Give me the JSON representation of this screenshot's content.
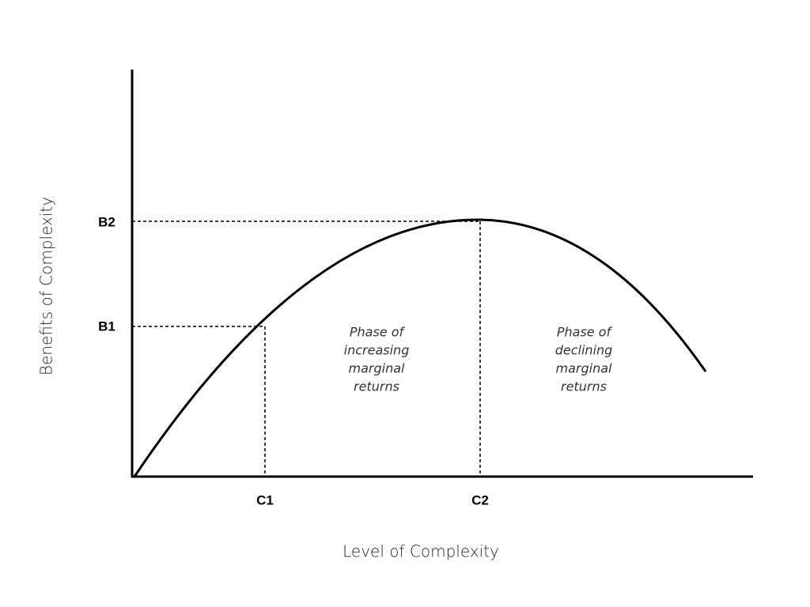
{
  "axes": {
    "x_title": "Level of Complexity",
    "y_title": "Benefits of Complexity"
  },
  "levels": {
    "b1": "B1",
    "b2": "B2",
    "c1": "C1",
    "c2": "C2"
  },
  "phases": [
    {
      "lines": [
        "Phase of",
        "increasing",
        "marginal",
        "returns"
      ]
    },
    {
      "lines": [
        "Phase of",
        "declining",
        "marginal",
        "returns"
      ]
    }
  ]
}
